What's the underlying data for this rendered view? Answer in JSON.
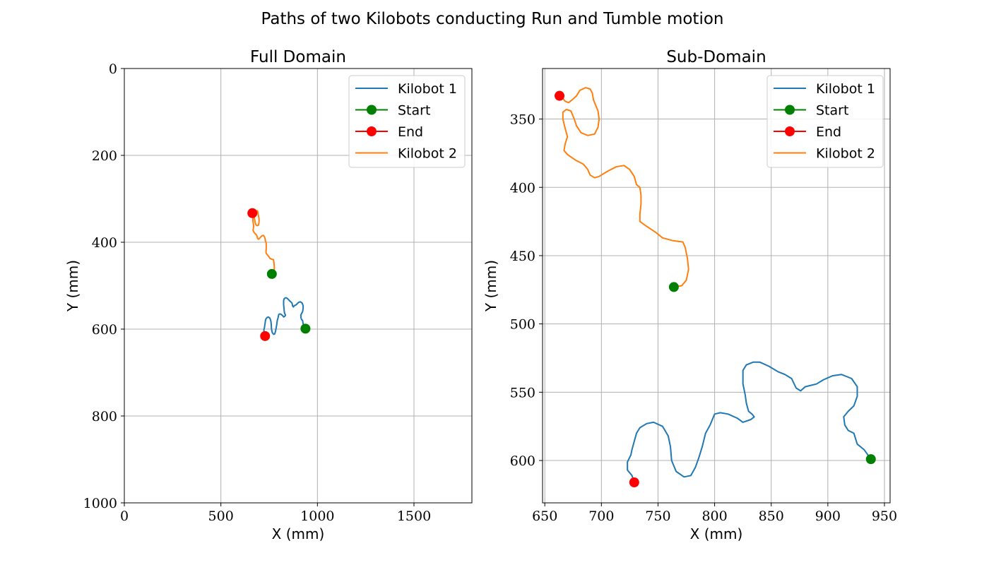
{
  "figure": {
    "title": "Paths of two Kilobots conducting Run and Tumble motion"
  },
  "colors": {
    "kilobot1": "#1f77b4",
    "kilobot2": "#ff7f0e",
    "start": "#008000",
    "end": "#ff0000"
  },
  "legend": {
    "placement": "top-right",
    "entries": [
      {
        "label": "Kilobot 1",
        "kind": "line",
        "color": "#1f77b4"
      },
      {
        "label": "Start",
        "kind": "marker",
        "color": "#008000"
      },
      {
        "label": "End",
        "kind": "marker",
        "color": "#ff0000"
      },
      {
        "label": "Kilobot 2",
        "kind": "line",
        "color": "#ff7f0e"
      }
    ]
  },
  "chart_data": [
    {
      "type": "line",
      "title": "Full Domain",
      "xlabel": "X (mm)",
      "ylabel": "Y (mm)",
      "xlim": [
        0,
        1800
      ],
      "ylim": [
        1000,
        0
      ],
      "y_inverted": true,
      "grid": true,
      "xticks": [
        0,
        500,
        1000,
        1500
      ],
      "xtick_labels": [
        "0",
        "500",
        "1000",
        "1500"
      ],
      "yticks": [
        0,
        200,
        400,
        600,
        800,
        1000
      ],
      "ytick_labels": [
        "0",
        "200",
        "400",
        "600",
        "800",
        "1000"
      ],
      "legend": [
        "Kilobot 1",
        "Start",
        "End",
        "Kilobot 2"
      ]
    },
    {
      "type": "line",
      "title": "Sub-Domain",
      "xlabel": "X (mm)",
      "ylabel": "Y (mm)",
      "xlim": [
        648,
        955
      ],
      "ylim": [
        631,
        313
      ],
      "y_inverted": true,
      "grid": true,
      "xticks": [
        650,
        700,
        750,
        800,
        850,
        900,
        950
      ],
      "xtick_labels": [
        "650",
        "700",
        "750",
        "800",
        "850",
        "900",
        "950"
      ],
      "yticks": [
        350,
        400,
        450,
        500,
        550,
        600
      ],
      "ytick_labels": [
        "350",
        "400",
        "450",
        "500",
        "550",
        "600"
      ],
      "legend": [
        "Kilobot 1",
        "Start",
        "End",
        "Kilobot 2"
      ]
    }
  ],
  "series": [
    {
      "name": "Kilobot 1",
      "color": "#1f77b4",
      "start": [
        938,
        599
      ],
      "end": [
        729,
        616
      ],
      "points": [
        [
          938,
          599
        ],
        [
          932,
          592
        ],
        [
          926,
          588
        ],
        [
          923,
          580
        ],
        [
          918,
          578
        ],
        [
          915,
          574
        ],
        [
          914,
          568
        ],
        [
          918,
          564
        ],
        [
          923,
          560
        ],
        [
          926,
          553
        ],
        [
          926,
          546
        ],
        [
          921,
          540
        ],
        [
          912,
          537
        ],
        [
          904,
          538
        ],
        [
          896,
          541
        ],
        [
          890,
          544
        ],
        [
          880,
          546
        ],
        [
          876,
          549
        ],
        [
          872,
          547
        ],
        [
          868,
          540
        ],
        [
          862,
          537
        ],
        [
          856,
          535
        ],
        [
          848,
          531
        ],
        [
          840,
          528
        ],
        [
          834,
          528
        ],
        [
          828,
          530
        ],
        [
          825,
          534
        ],
        [
          825,
          544
        ],
        [
          827,
          552
        ],
        [
          828,
          558
        ],
        [
          830,
          564
        ],
        [
          833,
          566
        ],
        [
          835,
          568
        ],
        [
          832,
          570
        ],
        [
          825,
          572
        ],
        [
          820,
          569
        ],
        [
          812,
          566
        ],
        [
          805,
          565
        ],
        [
          800,
          566
        ],
        [
          798,
          570
        ],
        [
          796,
          574
        ],
        [
          792,
          580
        ],
        [
          789,
          590
        ],
        [
          786,
          598
        ],
        [
          783,
          605
        ],
        [
          779,
          611
        ],
        [
          773,
          612
        ],
        [
          766,
          608
        ],
        [
          762,
          600
        ],
        [
          761,
          590
        ],
        [
          759,
          582
        ],
        [
          754,
          575
        ],
        [
          746,
          572
        ],
        [
          740,
          573
        ],
        [
          734,
          576
        ],
        [
          731,
          580
        ],
        [
          729,
          586
        ],
        [
          727,
          592
        ],
        [
          726,
          596
        ],
        [
          723,
          601
        ],
        [
          723,
          607
        ],
        [
          727,
          611
        ],
        [
          729,
          616
        ]
      ]
    },
    {
      "name": "Kilobot 2",
      "color": "#ff7f0e",
      "start": [
        764,
        473
      ],
      "end": [
        663,
        333
      ],
      "points": [
        [
          764,
          473
        ],
        [
          771,
          472
        ],
        [
          775,
          468
        ],
        [
          777,
          460
        ],
        [
          776,
          452
        ],
        [
          774,
          444
        ],
        [
          772,
          440
        ],
        [
          763,
          439
        ],
        [
          754,
          437
        ],
        [
          748,
          433
        ],
        [
          739,
          428
        ],
        [
          734,
          425
        ],
        [
          734,
          420
        ],
        [
          735,
          412
        ],
        [
          735,
          406
        ],
        [
          734,
          400
        ],
        [
          731,
          398
        ],
        [
          729,
          392
        ],
        [
          725,
          387
        ],
        [
          720,
          384
        ],
        [
          713,
          385
        ],
        [
          706,
          388
        ],
        [
          702,
          390
        ],
        [
          698,
          392
        ],
        [
          694,
          393
        ],
        [
          690,
          391
        ],
        [
          688,
          387
        ],
        [
          684,
          383
        ],
        [
          677,
          380
        ],
        [
          670,
          376
        ],
        [
          667,
          373
        ],
        [
          668,
          368
        ],
        [
          670,
          363
        ],
        [
          668,
          357
        ],
        [
          666,
          350
        ],
        [
          666,
          345
        ],
        [
          669,
          343
        ],
        [
          673,
          344
        ],
        [
          676,
          350
        ],
        [
          678,
          355
        ],
        [
          682,
          360
        ],
        [
          688,
          362
        ],
        [
          694,
          361
        ],
        [
          697,
          356
        ],
        [
          698,
          350
        ],
        [
          697,
          344
        ],
        [
          695,
          340
        ],
        [
          693,
          336
        ],
        [
          692,
          331
        ],
        [
          690,
          328
        ],
        [
          686,
          327
        ],
        [
          681,
          329
        ],
        [
          678,
          333
        ],
        [
          674,
          336
        ],
        [
          671,
          338
        ],
        [
          668,
          337
        ],
        [
          666,
          335
        ],
        [
          663,
          333
        ]
      ]
    }
  ]
}
